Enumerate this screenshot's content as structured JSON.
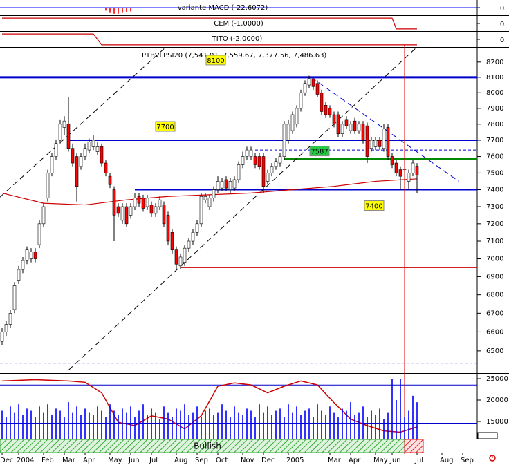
{
  "chart_data": [
    {
      "type": "bar",
      "title": "variante MACD (-22.6072)",
      "xlim": [
        -0.5,
        114.5
      ],
      "ylim": [
        -1,
        1
      ],
      "yticks": [
        0
      ],
      "zero_line_color": "#0000ff",
      "color": "#ff0000",
      "x": [
        25,
        26,
        27,
        28,
        29,
        30,
        31
      ],
      "values": [
        -0.4,
        -0.7,
        -0.8,
        -0.8,
        -0.7,
        -0.6,
        -0.5
      ]
    },
    {
      "type": "line",
      "title": "CEM (-1.0000)",
      "xlim": [
        -0.5,
        114.5
      ],
      "ylim": [
        -1.4,
        1.4
      ],
      "yticks": [
        0
      ],
      "color": "#cc0000",
      "x": [
        0,
        94,
        95,
        100
      ],
      "values": [
        1,
        1,
        -1,
        -1
      ]
    },
    {
      "type": "line",
      "title": "TITO (-2.0000)",
      "xlim": [
        -0.5,
        114.5
      ],
      "ylim": [
        -2.8,
        2.8
      ],
      "yticks": [
        0
      ],
      "color": "#cc0000",
      "x": [
        0,
        22,
        24,
        100
      ],
      "values": [
        2,
        2,
        -2,
        -2
      ]
    },
    {
      "type": "candlestick",
      "title": "PTBVLPSI20 (7,541.01, 7,559.67, 7,377.56, 7,486.63)",
      "log": true,
      "xlim": [
        -0.5,
        114.5
      ],
      "ylim": [
        6385,
        8300
      ],
      "yticks": [
        6500,
        6600,
        6700,
        6800,
        6900,
        7000,
        7100,
        7200,
        7300,
        7400,
        7500,
        7600,
        7700,
        7800,
        7900,
        8000,
        8100,
        8200
      ],
      "up_color": "#ffffff",
      "down_color": "#ff0000",
      "x": [
        0,
        1,
        2,
        3,
        4,
        5,
        6,
        7,
        8,
        9,
        10,
        11,
        12,
        13,
        14,
        15,
        16,
        17,
        18,
        19,
        20,
        21,
        22,
        23,
        24,
        25,
        26,
        27,
        28,
        29,
        30,
        31,
        32,
        33,
        34,
        35,
        36,
        37,
        38,
        39,
        40,
        41,
        42,
        43,
        44,
        45,
        46,
        47,
        48,
        49,
        50,
        51,
        52,
        53,
        54,
        55,
        56,
        57,
        58,
        59,
        60,
        61,
        62,
        63,
        64,
        65,
        66,
        67,
        68,
        69,
        70,
        71,
        72,
        73,
        74,
        75,
        76,
        77,
        78,
        79,
        80,
        81,
        82,
        83,
        84,
        85,
        86,
        87,
        88,
        89,
        90,
        91,
        92,
        93,
        94,
        95,
        96,
        97,
        98,
        99,
        100
      ],
      "open": [
        6550,
        6600,
        6640,
        6720,
        6880,
        6940,
        6990,
        7000,
        7040,
        7080,
        7200,
        7350,
        7500,
        7600,
        7700,
        7780,
        7800,
        7650,
        7600,
        7540,
        7600,
        7640,
        7660,
        7630,
        7660,
        7560,
        7480,
        7400,
        7300,
        7220,
        7300,
        7250,
        7300,
        7360,
        7350,
        7300,
        7310,
        7260,
        7300,
        7310,
        7250,
        7150,
        7050,
        6960,
        6980,
        7060,
        7100,
        7150,
        7200,
        7340,
        7300,
        7350,
        7400,
        7410,
        7460,
        7400,
        7410,
        7460,
        7550,
        7600,
        7600,
        7600,
        7600,
        7600,
        7450,
        7500,
        7540,
        7560,
        7600,
        7700,
        7760,
        7800,
        7900,
        8000,
        8050,
        8090,
        8060,
        8000,
        7920,
        7900,
        7860,
        7860,
        7740,
        7830,
        7760,
        7820,
        7760,
        7800,
        7790,
        7650,
        7660,
        7700,
        7650,
        7780,
        7600,
        7560,
        7520,
        7520,
        7450,
        7500,
        7541.01
      ],
      "high": [
        6620,
        6660,
        6720,
        6870,
        6960,
        7010,
        7070,
        7060,
        7060,
        7220,
        7320,
        7520,
        7620,
        7700,
        7830,
        7850,
        7970,
        7680,
        7620,
        7620,
        7680,
        7710,
        7730,
        7690,
        7680,
        7580,
        7500,
        7420,
        7320,
        7320,
        7320,
        7320,
        7380,
        7380,
        7370,
        7370,
        7330,
        7320,
        7360,
        7330,
        7270,
        7170,
        7070,
        7030,
        7080,
        7120,
        7170,
        7220,
        7380,
        7380,
        7370,
        7420,
        7480,
        7470,
        7480,
        7470,
        7480,
        7570,
        7630,
        7660,
        7660,
        7620,
        7620,
        7620,
        7520,
        7560,
        7590,
        7620,
        7820,
        7830,
        7880,
        7920,
        8020,
        8080,
        8110,
        8100,
        8080,
        8020,
        7940,
        7920,
        7880,
        7880,
        7820,
        7850,
        7820,
        7840,
        7820,
        7820,
        7810,
        7720,
        7720,
        7720,
        7800,
        7800,
        7620,
        7580,
        7540,
        7540,
        7520,
        7580,
        7559.67
      ],
      "low": [
        6530,
        6580,
        6620,
        6700,
        6860,
        6920,
        6970,
        6980,
        6980,
        7060,
        7180,
        7330,
        7480,
        7580,
        7680,
        7730,
        7630,
        7540,
        7330,
        7520,
        7580,
        7620,
        7640,
        7610,
        7540,
        7480,
        7410,
        7100,
        7240,
        7200,
        7180,
        7230,
        7280,
        7300,
        7270,
        7280,
        7240,
        7240,
        7280,
        7180,
        7080,
        7030,
        6940,
        6940,
        6960,
        7040,
        7080,
        7130,
        7180,
        7320,
        7280,
        7330,
        7380,
        7390,
        7390,
        7380,
        7390,
        7440,
        7530,
        7580,
        7580,
        7530,
        7520,
        7380,
        7430,
        7480,
        7520,
        7540,
        7580,
        7680,
        7740,
        7780,
        7880,
        7980,
        8030,
        8020,
        7970,
        7860,
        7840,
        7840,
        7780,
        7720,
        7720,
        7770,
        7740,
        7740,
        7740,
        7680,
        7560,
        7630,
        7640,
        7640,
        7630,
        7580,
        7530,
        7480,
        7400,
        7400,
        7400,
        7480,
        7377.56
      ],
      "close": [
        6600,
        6640,
        6700,
        6850,
        6940,
        6990,
        7050,
        7040,
        7000,
        7200,
        7300,
        7500,
        7600,
        7680,
        7800,
        7820,
        7650,
        7560,
        7420,
        7600,
        7650,
        7690,
        7700,
        7660,
        7560,
        7500,
        7430,
        7250,
        7260,
        7300,
        7200,
        7300,
        7350,
        7320,
        7290,
        7350,
        7260,
        7300,
        7340,
        7200,
        7100,
        7050,
        6970,
        7010,
        7060,
        7100,
        7150,
        7200,
        7360,
        7360,
        7350,
        7400,
        7450,
        7450,
        7410,
        7450,
        7460,
        7550,
        7600,
        7640,
        7640,
        7550,
        7540,
        7420,
        7500,
        7540,
        7570,
        7600,
        7800,
        7800,
        7860,
        7900,
        8000,
        8060,
        8090,
        8040,
        7990,
        7880,
        7860,
        7860,
        7800,
        7740,
        7800,
        7790,
        7800,
        7760,
        7800,
        7700,
        7600,
        7700,
        7700,
        7660,
        7770,
        7600,
        7550,
        7500,
        7480,
        7525,
        7500,
        7560,
        7486.63
      ],
      "moving_average": {
        "color": "#cc0000",
        "x": [
          0,
          10,
          20,
          30,
          40,
          50,
          60,
          70,
          80,
          90,
          100
        ],
        "values": [
          7380,
          7320,
          7310,
          7340,
          7360,
          7370,
          7380,
          7400,
          7420,
          7450,
          7465
        ]
      },
      "levels": [
        {
          "value": 8100,
          "from": -0.5,
          "color": "#0000cc",
          "width": 3,
          "label": true,
          "label_color": "#ffff00"
        },
        {
          "value": 7700,
          "from": 16,
          "color": "#0000cc",
          "width": 2,
          "label": true,
          "label_color": "#ffff00"
        },
        {
          "value": 7640,
          "from": 61,
          "color": "#0000cc",
          "width": 1,
          "dashed": true
        },
        {
          "value": 7587,
          "from": 68,
          "color": "#008800",
          "width": 3,
          "label": true,
          "label_color": "#22cc44"
        },
        {
          "value": 7400,
          "from": 32,
          "color": "#0000cc",
          "width": 2,
          "label": true,
          "label_color": "#ffff00"
        },
        {
          "value": 6950,
          "from": 43,
          "color": "#cc0000",
          "width": 1
        },
        {
          "value": 6436,
          "from": -0.5,
          "color": "#0000cc",
          "width": 1,
          "dashed": true
        }
      ],
      "trendlines": [
        {
          "color": "#000000",
          "x": [
            -0.5,
            39.5
          ],
          "y": [
            7356,
            8300
          ]
        },
        {
          "color": "#000000",
          "x": [
            16,
            100
          ],
          "y": [
            6400,
            8300
          ]
        },
        {
          "color": "#0000cc",
          "x": [
            74.5,
            110
          ],
          "y": [
            8100,
            7451
          ]
        }
      ],
      "cursor_x": 97,
      "cursor_color": "#dd0000"
    },
    {
      "type": "bar",
      "xlim": [
        -0.5,
        114.5
      ],
      "ylim": [
        10970,
        26290
      ],
      "yticks": [
        15000,
        20000,
        25000
      ],
      "color": "#0000ff",
      "x": [
        0,
        1,
        2,
        3,
        4,
        5,
        6,
        7,
        8,
        9,
        10,
        11,
        12,
        13,
        14,
        15,
        16,
        17,
        18,
        19,
        20,
        21,
        22,
        23,
        24,
        25,
        26,
        27,
        28,
        29,
        30,
        31,
        32,
        33,
        34,
        35,
        36,
        37,
        38,
        39,
        40,
        41,
        42,
        43,
        44,
        45,
        46,
        47,
        48,
        49,
        50,
        51,
        52,
        53,
        54,
        55,
        56,
        57,
        58,
        59,
        60,
        61,
        62,
        63,
        64,
        65,
        66,
        67,
        68,
        69,
        70,
        71,
        72,
        73,
        74,
        75,
        76,
        77,
        78,
        79,
        80,
        81,
        82,
        83,
        84,
        85,
        86,
        87,
        88,
        89,
        90,
        91,
        92,
        93,
        94,
        95,
        96,
        97,
        98,
        99,
        100
      ],
      "values": [
        17500,
        16000,
        18500,
        17000,
        19000,
        16500,
        18000,
        17500,
        16000,
        18500,
        17000,
        19000,
        16500,
        18000,
        17500,
        16000,
        19500,
        17000,
        18500,
        16500,
        18000,
        17000,
        16500,
        18500,
        17500,
        16000,
        19000,
        17500,
        16500,
        18000,
        17000,
        18500,
        16000,
        17500,
        19000,
        16500,
        18000,
        17000,
        15500,
        18500,
        17000,
        16000,
        18000,
        17500,
        19000,
        16500,
        17000,
        18500,
        16000,
        17500,
        18000,
        16500,
        17000,
        19000,
        17500,
        16000,
        18500,
        17000,
        16500,
        18000,
        17500,
        16000,
        19000,
        17000,
        18500,
        16500,
        17500,
        18000,
        16000,
        19000,
        17000,
        18500,
        16500,
        17500,
        18000,
        16000,
        19000,
        17500,
        16500,
        18500,
        17000,
        16000,
        18000,
        17500,
        19500,
        16500,
        17000,
        18500,
        16000,
        17500,
        16500,
        18000,
        15500,
        17000,
        25000,
        20000,
        25000,
        16000,
        17500,
        21000,
        19500
      ],
      "levels": [
        {
          "value": 23500,
          "color": "#0000cc"
        },
        {
          "value": 14600,
          "color": "#0000cc"
        }
      ],
      "y2lim": [
        0,
        100
      ],
      "oscillator": {
        "axis": "y2",
        "color": "#cc0000",
        "x": [
          0,
          8,
          16,
          20,
          24,
          28,
          32,
          36,
          40,
          44,
          48,
          52,
          56,
          60,
          64,
          68,
          72,
          76,
          80,
          84,
          88,
          92,
          96,
          100
        ],
        "values": [
          88,
          90,
          88,
          86,
          70,
          25,
          20,
          35,
          30,
          15,
          35,
          80,
          85,
          82,
          70,
          80,
          88,
          82,
          55,
          30,
          20,
          12,
          10,
          18
        ]
      },
      "signal_band": {
        "label": "Bullish",
        "color": "#33aa33",
        "alert_color": "#dd2222",
        "switch_x": 97
      },
      "xticks": [
        {
          "value": 0,
          "label": "Dec"
        },
        {
          "value": 4,
          "label": "2004"
        },
        {
          "value": 10,
          "label": "Feb"
        },
        {
          "value": 15,
          "label": "Mar"
        },
        {
          "value": 20,
          "label": "Apr"
        },
        {
          "value": 26,
          "label": "May"
        },
        {
          "value": 31,
          "label": "Jun"
        },
        {
          "value": 36,
          "label": "Jul"
        },
        {
          "value": 42,
          "label": "Aug"
        },
        {
          "value": 47,
          "label": "Sep"
        },
        {
          "value": 52,
          "label": "Oct"
        },
        {
          "value": 58,
          "label": "Nov"
        },
        {
          "value": 63,
          "label": "Dec"
        },
        {
          "value": 69,
          "label": "2005"
        },
        {
          "value": 79,
          "label": "Mar"
        },
        {
          "value": 84,
          "label": "Apr"
        },
        {
          "value": 90,
          "label": "May"
        },
        {
          "value": 94,
          "label": "Jun"
        },
        {
          "value": 100,
          "label": "Jul"
        },
        {
          "value": 106,
          "label": "Aug"
        },
        {
          "value": 111,
          "label": "Sep"
        }
      ]
    }
  ]
}
